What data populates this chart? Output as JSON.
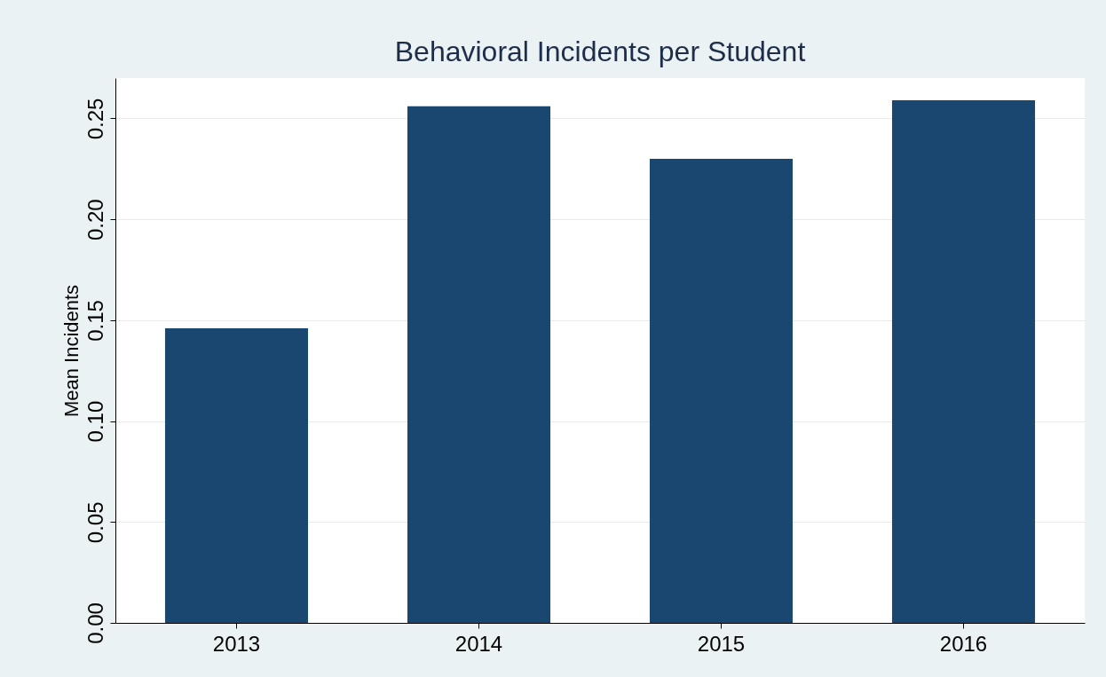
{
  "chart_data": {
    "type": "bar",
    "title": "Behavioral Incidents per Student",
    "ylabel": "Mean Incidents",
    "categories": [
      "2013",
      "2014",
      "2015",
      "2016"
    ],
    "values": [
      0.146,
      0.256,
      0.23,
      0.259
    ],
    "color": "#1a476f",
    "ylim": [
      0,
      0.27
    ],
    "yticks": [
      {
        "value": 0,
        "label": "0.00"
      },
      {
        "value": 0.05,
        "label": "0.05"
      },
      {
        "value": 0.1,
        "label": "0.10"
      },
      {
        "value": 0.15,
        "label": "0.15"
      },
      {
        "value": 0.2,
        "label": "0.20"
      },
      {
        "value": 0.25,
        "label": "0.25"
      }
    ],
    "grid": "y"
  }
}
